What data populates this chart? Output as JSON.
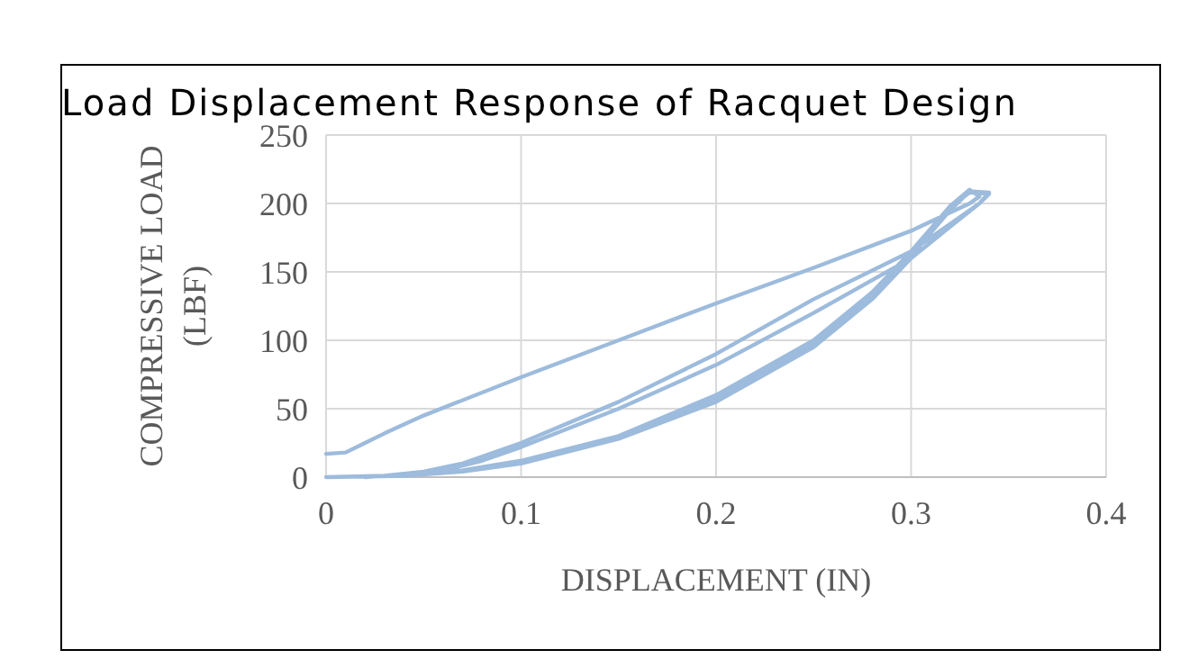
{
  "chart_data": {
    "type": "line",
    "title": "Load Displacement Response of Racquet Design",
    "xlabel": "DISPLACEMENT (IN)",
    "ylabel": "COMPRESSIVE LOAD (LBF)",
    "xlim": [
      0,
      0.4
    ],
    "xticks": [
      0,
      0.1,
      0.2,
      0.3,
      0.4
    ],
    "ylim": [
      0,
      250
    ],
    "yticks": [
      0,
      50,
      100,
      150,
      200,
      250
    ],
    "grid": true,
    "marker": "none",
    "line_style": "solid",
    "series": [
      {
        "color": "#9dbbdc",
        "x": [
          0,
          0.03,
          0.06,
          0.1,
          0.15,
          0.2,
          0.25,
          0.28,
          0.3,
          0.31,
          0.32,
          0.33,
          0.34,
          0.335,
          0.32,
          0.3,
          0.25,
          0.2,
          0.15,
          0.1,
          0.07,
          0.05,
          0.03,
          0,
          0.04,
          0.07,
          0.1,
          0.15,
          0.2,
          0.25,
          0.28,
          0.3,
          0.32,
          0.33,
          0.34,
          0.335,
          0.32,
          0.3,
          0.25,
          0.2,
          0.15,
          0.1,
          0.08,
          0.06,
          0.04,
          0.02,
          0.04,
          0.07,
          0.1,
          0.15,
          0.2,
          0.25,
          0.28,
          0.3,
          0.32,
          0.33,
          0.335,
          0.33,
          0.3,
          0.25,
          0.2,
          0.15,
          0.1,
          0.05,
          0.03,
          0.02,
          0.01,
          0
        ],
        "values": [
          0,
          1,
          3,
          10,
          28,
          55,
          95,
          130,
          160,
          180,
          197,
          208,
          207,
          200,
          185,
          165,
          130,
          90,
          55,
          25,
          10,
          4,
          1,
          0,
          1,
          4,
          10,
          28,
          57,
          97,
          132,
          162,
          195,
          209,
          208,
          200,
          183,
          160,
          120,
          82,
          50,
          22,
          12,
          5,
          2,
          0,
          2,
          5,
          12,
          30,
          60,
          100,
          135,
          165,
          198,
          210,
          205,
          200,
          180,
          153,
          127,
          100,
          73,
          45,
          32,
          25,
          18,
          17
        ]
      }
    ]
  }
}
